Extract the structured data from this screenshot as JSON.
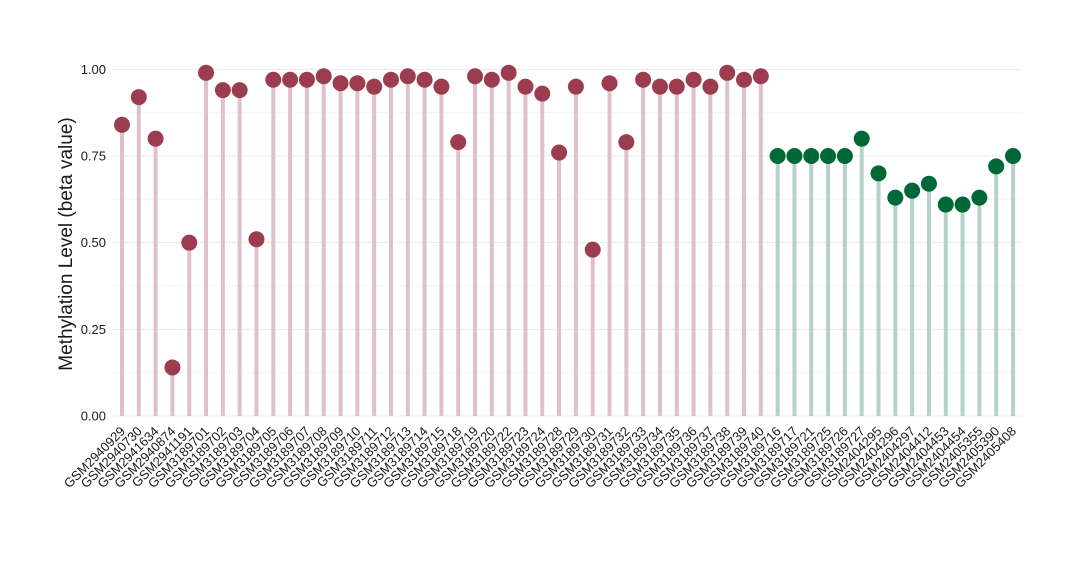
{
  "chart_data": {
    "type": "lollipop",
    "title": "",
    "xlabel": "",
    "ylabel": "Methylation Level (beta value)",
    "ylim": [
      0,
      1.05
    ],
    "yticks": [
      "0.00",
      "0.25",
      "0.50",
      "0.75",
      "1.00"
    ],
    "grid": true,
    "legend": "none",
    "colors": {
      "group1_point": "#9b3d4e",
      "group1_stem": "#e0c1c9",
      "group2_point": "#006837",
      "group2_stem": "#b3d3c7"
    },
    "groups": [
      "group1",
      "group2"
    ],
    "categories": [
      "GSM2940929",
      "GSM2940730",
      "GSM2941634",
      "GSM2940874",
      "GSM2941191",
      "GSM3189701",
      "GSM3189702",
      "GSM3189703",
      "GSM3189704",
      "GSM3189705",
      "GSM3189706",
      "GSM3189707",
      "GSM3189708",
      "GSM3189709",
      "GSM3189710",
      "GSM3189711",
      "GSM3189712",
      "GSM3189713",
      "GSM3189714",
      "GSM3189715",
      "GSM3189718",
      "GSM3189719",
      "GSM3189720",
      "GSM3189722",
      "GSM3189723",
      "GSM3189724",
      "GSM3189728",
      "GSM3189729",
      "GSM3189730",
      "GSM3189731",
      "GSM3189732",
      "GSM3189733",
      "GSM3189734",
      "GSM3189735",
      "GSM3189736",
      "GSM3189737",
      "GSM3189738",
      "GSM3189739",
      "GSM3189740",
      "GSM3189716",
      "GSM3189717",
      "GSM3189721",
      "GSM3189725",
      "GSM3189726",
      "GSM3189727",
      "GSM2404295",
      "GSM2404296",
      "GSM2404297",
      "GSM2404412",
      "GSM2404453",
      "GSM2404454",
      "GSM2405355",
      "GSM2405390",
      "GSM2405408"
    ],
    "values": [
      0.84,
      0.92,
      0.8,
      0.14,
      0.5,
      0.99,
      0.94,
      0.94,
      0.51,
      0.97,
      0.97,
      0.97,
      0.98,
      0.96,
      0.96,
      0.95,
      0.97,
      0.98,
      0.97,
      0.95,
      0.79,
      0.98,
      0.97,
      0.99,
      0.95,
      0.93,
      0.76,
      0.95,
      0.48,
      0.96,
      0.79,
      0.97,
      0.95,
      0.95,
      0.97,
      0.95,
      0.99,
      0.97,
      0.98,
      0.75,
      0.75,
      0.75,
      0.75,
      0.75,
      0.8,
      0.7,
      0.63,
      0.65,
      0.67,
      0.61,
      0.61,
      0.63,
      0.72,
      0.75
    ],
    "group_of": [
      "group1",
      "group1",
      "group1",
      "group1",
      "group1",
      "group1",
      "group1",
      "group1",
      "group1",
      "group1",
      "group1",
      "group1",
      "group1",
      "group1",
      "group1",
      "group1",
      "group1",
      "group1",
      "group1",
      "group1",
      "group1",
      "group1",
      "group1",
      "group1",
      "group1",
      "group1",
      "group1",
      "group1",
      "group1",
      "group1",
      "group1",
      "group1",
      "group1",
      "group1",
      "group1",
      "group1",
      "group1",
      "group1",
      "group1",
      "group2",
      "group2",
      "group2",
      "group2",
      "group2",
      "group2",
      "group2",
      "group2",
      "group2",
      "group2",
      "group2",
      "group2",
      "group2",
      "group2",
      "group2"
    ]
  }
}
